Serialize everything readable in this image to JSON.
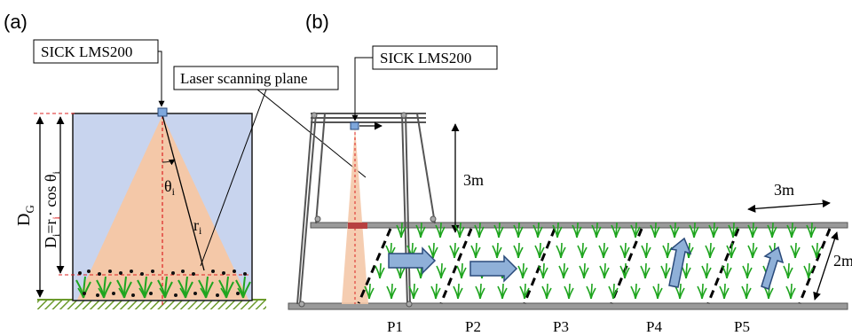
{
  "panel_a": {
    "label": "(a)",
    "sensor_label": "SICK LMS200",
    "plane_label": "Laser scanning plane",
    "dg_main": "D",
    "dg_sub": "G",
    "di_text": "D",
    "di_sub": "i",
    "di_eq": "=r",
    "di_rsub": "i",
    "di_cos": "· cos θ",
    "di_cossub": "i",
    "theta": "θ",
    "theta_sub": "i",
    "r": "r",
    "r_sub": "i"
  },
  "panel_b": {
    "label": "(b)",
    "sensor_label": "SICK LMS200",
    "height_label": "3m",
    "width_label": "3m",
    "depth_label": "2m",
    "plots": [
      "P1",
      "P2",
      "P3",
      "P4",
      "P5"
    ]
  },
  "colors": {
    "sky": "#c8d4ee",
    "beam": "#f4c8a8",
    "arrow_fill": "#8fb0d8",
    "arrow_stroke": "#2a4a7a",
    "plant": "#1fa51f",
    "ground": "#7aa63a"
  }
}
